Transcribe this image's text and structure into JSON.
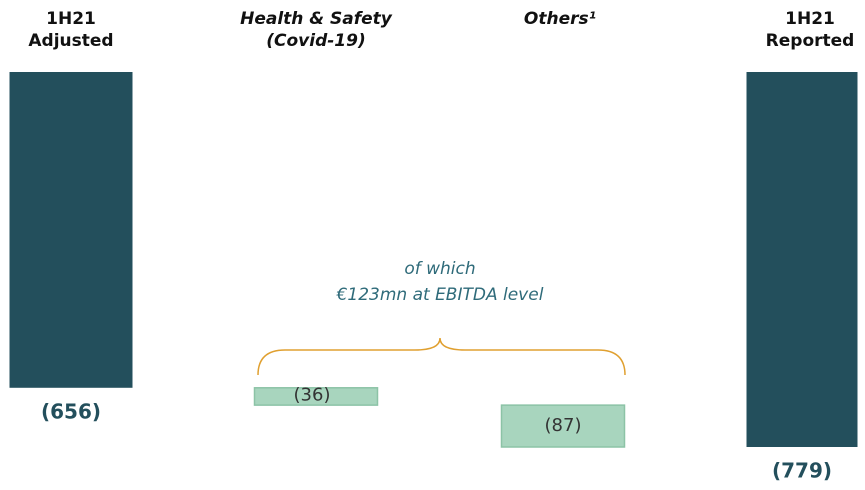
{
  "chart_data": {
    "type": "waterfall",
    "categories": [
      "1H21\nAdjusted",
      "Health & Safety\n(Covid-19)",
      "Others¹",
      "1H21\nReported"
    ],
    "values": [
      -656,
      -36,
      -87,
      -779
    ],
    "value_labels": [
      "(656)",
      "(36)",
      "(87)",
      "(779)"
    ],
    "measures": [
      "absolute",
      "relative",
      "relative",
      "total"
    ],
    "total_color": "#234f5c",
    "delta_color": "#a8d5be",
    "annotation": "of which\n€123mn at EBITDA level"
  }
}
